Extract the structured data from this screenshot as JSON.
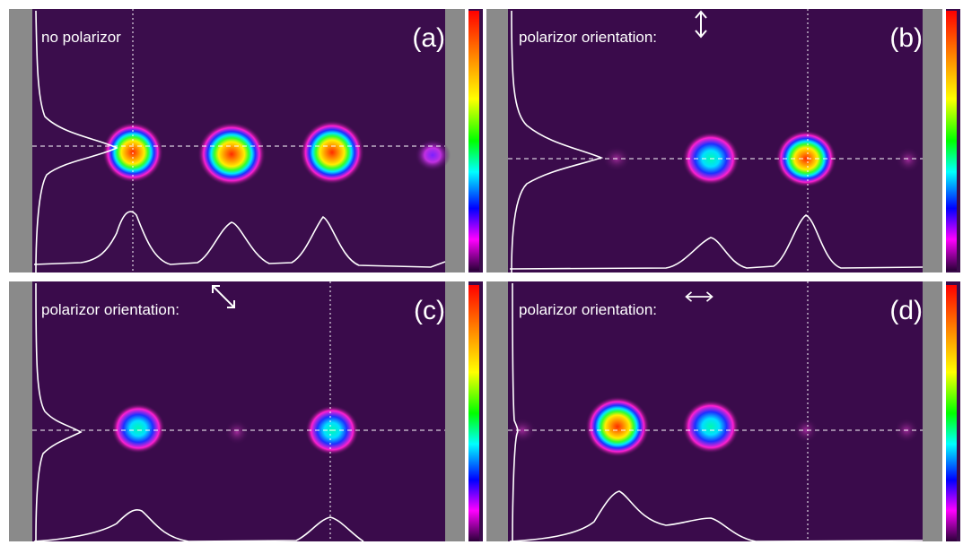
{
  "panels": [
    {
      "id": "a",
      "letter": "(a)",
      "label": "no polarizor",
      "orientation_icon": "",
      "orientation": ""
    },
    {
      "id": "b",
      "letter": "(b)",
      "label": "polarizor orientation:",
      "orientation_icon": "vertical-double-arrow-icon",
      "orientation": "vertical"
    },
    {
      "id": "c",
      "letter": "(c)",
      "label": "polarizor orientation:",
      "orientation_icon": "diagonal-double-arrow-icon",
      "orientation": "diagonal"
    },
    {
      "id": "d",
      "letter": "(d)",
      "label": "polarizor orientation:",
      "orientation_icon": "horizontal-double-arrow-icon",
      "orientation": "horizontal"
    }
  ],
  "colors": {
    "background": "#3a0c4a",
    "frame_gray": "#8a8a8a",
    "profile_line": "#ffffff",
    "colorbar": [
      "#ff0000",
      "#ff8800",
      "#ffff00",
      "#00ff00",
      "#00ffff",
      "#0000ff",
      "#ff00ff",
      "#300040"
    ]
  }
}
